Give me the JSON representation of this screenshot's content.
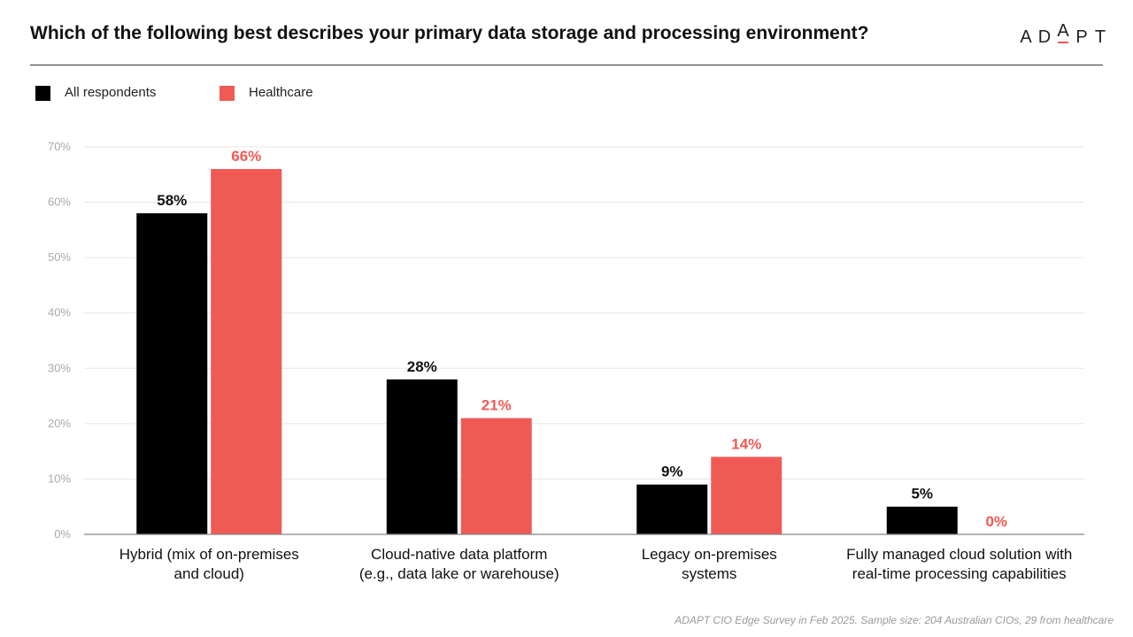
{
  "header": {
    "title": "Which of the following best describes your primary data storage and processing environment?",
    "logo_text": "ADAPT",
    "logo_letters": [
      "A",
      "D",
      "A",
      "P",
      "T"
    ]
  },
  "colors": {
    "all_respondents": "#000000",
    "healthcare": "#f05a55",
    "grid": "#e6e6e6",
    "tick_text": "#aaaaaa"
  },
  "chart_data": {
    "type": "bar",
    "title": "Which of the following best describes your primary data storage and processing environment?",
    "xlabel": "",
    "ylabel": "",
    "ylim": [
      0,
      70
    ],
    "yticks": [
      0,
      10,
      20,
      30,
      40,
      50,
      60,
      70
    ],
    "ytick_labels": [
      "0%",
      "10%",
      "20%",
      "30%",
      "40%",
      "50%",
      "60%",
      "70%"
    ],
    "grid": true,
    "legend_position": "top-left",
    "categories": [
      [
        "Hybrid (mix of on-premises",
        "and cloud)"
      ],
      [
        "Cloud-native data platform",
        "(e.g., data lake or warehouse)"
      ],
      [
        "Legacy on-premises",
        "systems"
      ],
      [
        "Fully managed cloud solution with",
        "real-time processing capabilities"
      ]
    ],
    "series": [
      {
        "name": "All respondents",
        "values": [
          58,
          28,
          9,
          5
        ],
        "labels": [
          "58%",
          "28%",
          "9%",
          "5%"
        ]
      },
      {
        "name": "Healthcare",
        "values": [
          66,
          21,
          14,
          0
        ],
        "labels": [
          "66%",
          "21%",
          "14%",
          "0%"
        ]
      }
    ]
  },
  "footnote": "ADAPT CIO Edge Survey in Feb 2025. Sample size: 204 Australian CIOs, 29 from healthcare"
}
